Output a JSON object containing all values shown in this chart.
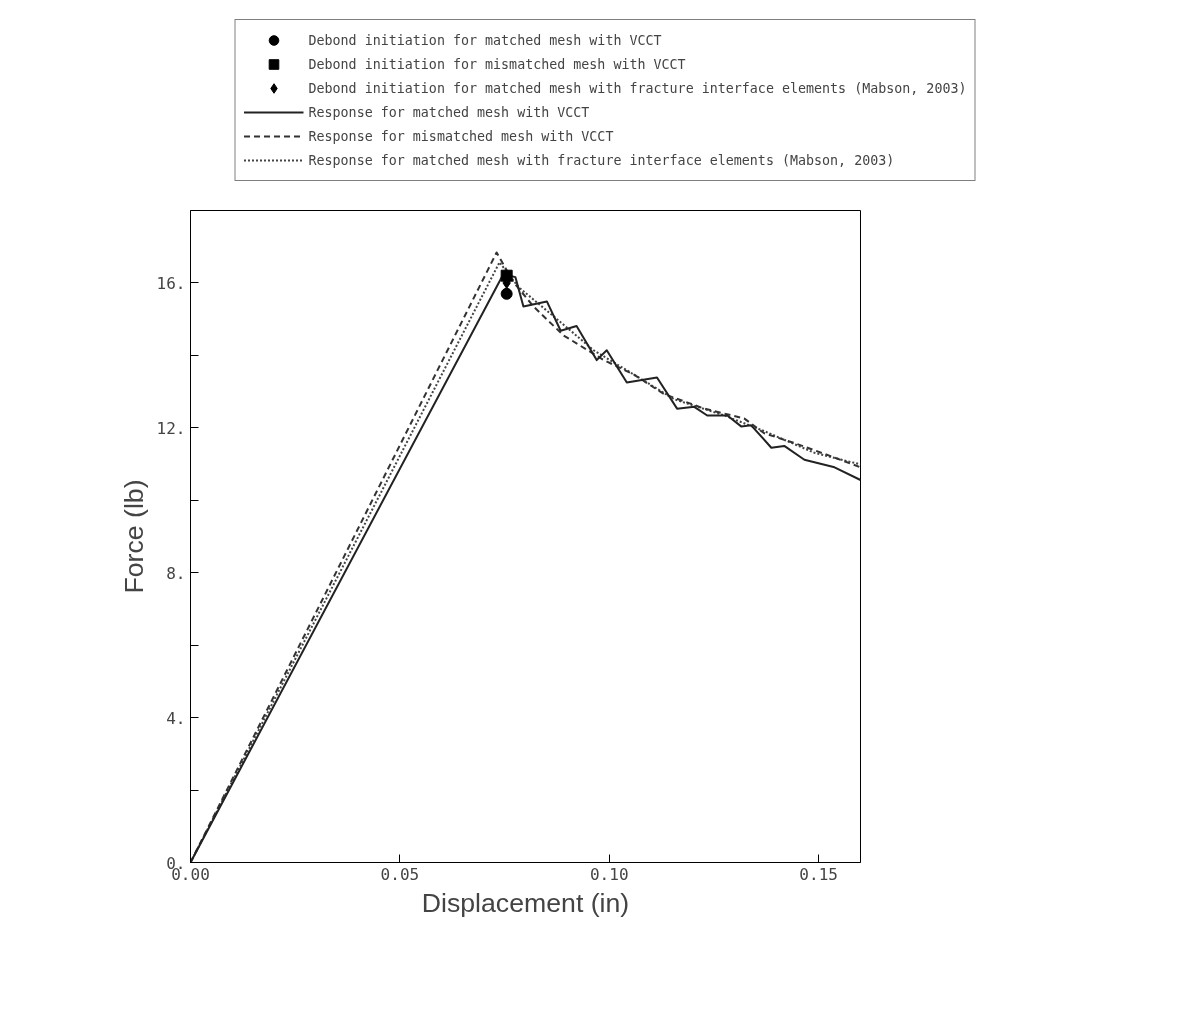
{
  "chart_data": {
    "type": "line",
    "xlabel": "Displacement (in)",
    "ylabel": "Force (lb)",
    "xlim": [
      0,
      0.16
    ],
    "ylim": [
      0,
      18
    ],
    "xticks": [
      {
        "value": 0,
        "label": "0.00"
      },
      {
        "value": 0.05,
        "label": "0.05"
      },
      {
        "value": 0.1,
        "label": "0.10"
      },
      {
        "value": 0.15,
        "label": "0.15"
      }
    ],
    "yticks": [
      {
        "value": 0,
        "label": "0."
      },
      {
        "value": 2,
        "label": null
      },
      {
        "value": 4,
        "label": "4."
      },
      {
        "value": 6,
        "label": null
      },
      {
        "value": 8,
        "label": "8."
      },
      {
        "value": 10,
        "label": null
      },
      {
        "value": 12,
        "label": "12."
      },
      {
        "value": 14,
        "label": null
      },
      {
        "value": 16,
        "label": "16."
      }
    ],
    "grid": false,
    "legend": "top",
    "series": [
      {
        "name": "Debond initiation for matched mesh with VCCT",
        "type": "scatter",
        "marker": "circle",
        "color": "#000000",
        "x": [
          0.0755
        ],
        "values": [
          15.7
        ]
      },
      {
        "name": "Debond initiation for mismatched mesh with VCCT",
        "type": "scatter",
        "marker": "square",
        "color": "#000000",
        "x": [
          0.0755
        ],
        "values": [
          16.2
        ]
      },
      {
        "name": "Debond initiation for matched mesh with fracture interface elements (Mabson, 2003)",
        "type": "scatter",
        "marker": "diamond",
        "color": "#000000",
        "x": [
          0.0755
        ],
        "values": [
          16.0
        ]
      },
      {
        "name": "Response for matched mesh with VCCT",
        "line_style": "solid",
        "color": "#222222",
        "x": [
          0,
          0.0747,
          0.0776,
          0.0795,
          0.0851,
          0.0884,
          0.0922,
          0.097,
          0.0994,
          0.1042,
          0.1114,
          0.1162,
          0.1203,
          0.1234,
          0.1282,
          0.1315,
          0.1339,
          0.1387,
          0.1418,
          0.1466,
          0.1538,
          0.16
        ],
        "values": [
          0,
          16.24,
          16.16,
          15.35,
          15.49,
          14.68,
          14.81,
          13.87,
          14.14,
          13.25,
          13.39,
          12.53,
          12.58,
          12.34,
          12.34,
          12.04,
          12.07,
          11.45,
          11.5,
          11.12,
          10.91,
          10.56
        ]
      },
      {
        "name": "Response for mismatched mesh with VCCT",
        "line_style": "dashed",
        "color": "#333333",
        "x": [
          0,
          0.0731,
          0.0771,
          0.0819,
          0.0891,
          0.0987,
          0.1059,
          0.1131,
          0.1227,
          0.1322,
          0.137,
          0.1442,
          0.1538,
          0.16
        ],
        "values": [
          0,
          16.84,
          16.03,
          15.35,
          14.55,
          13.87,
          13.47,
          12.93,
          12.53,
          12.26,
          11.85,
          11.58,
          11.18,
          10.91
        ]
      },
      {
        "name": "Response for matched mesh with fracture interface elements (Mabson, 2003)",
        "line_style": "dotted",
        "color": "#444444",
        "x": [
          0,
          0.0738,
          0.0783,
          0.0867,
          0.0963,
          0.1059,
          0.1155,
          0.1275,
          0.137,
          0.149,
          0.16
        ],
        "values": [
          0,
          16.57,
          15.89,
          15.08,
          14.14,
          13.47,
          12.79,
          12.34,
          11.91,
          11.31,
          10.99
        ]
      }
    ]
  }
}
